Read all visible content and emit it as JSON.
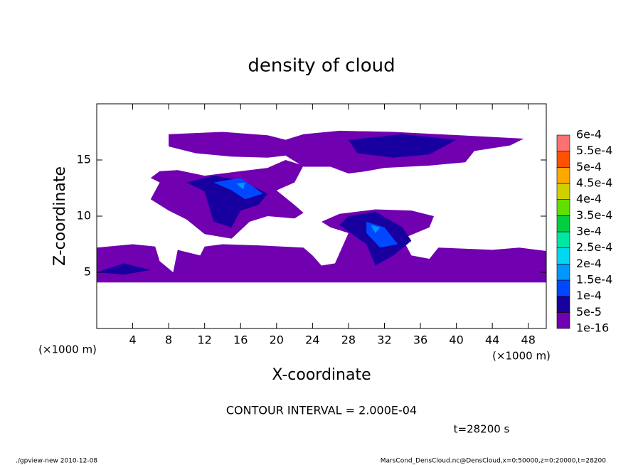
{
  "chart_data": {
    "type": "contour",
    "title": "density of cloud",
    "xlabel": "X-coordinate",
    "ylabel": "Z-coordinate",
    "x_unit": "(×1000 m)",
    "y_unit": "(×1000 m)",
    "note": "CONTOUR INTERVAL = 2.000E-04",
    "time": "t=28200 s",
    "footer_left": "./gpview-new  2010-12-08",
    "footer_right": "MarsCond_DensCloud.nc@DensCloud,x=0:50000,z=0:20000,t=28200",
    "xlim": [
      0,
      50
    ],
    "ylim": [
      0,
      20
    ],
    "xticks": [
      4,
      8,
      12,
      16,
      20,
      24,
      28,
      32,
      36,
      40,
      44,
      48
    ],
    "yticks": [
      5,
      10,
      15
    ],
    "levels": [
      {
        "value": 1e-16,
        "label": "1e-16"
      },
      {
        "value": 5e-05,
        "label": "5e-5"
      },
      {
        "value": 0.0001,
        "label": "1e-4"
      },
      {
        "value": 0.00015,
        "label": "1.5e-4"
      },
      {
        "value": 0.0002,
        "label": "2e-4"
      },
      {
        "value": 0.00025,
        "label": "2.5e-4"
      },
      {
        "value": 0.0003,
        "label": "3e-4"
      },
      {
        "value": 0.00035,
        "label": "3.5e-4"
      },
      {
        "value": 0.0004,
        "label": "4e-4"
      },
      {
        "value": 0.00045,
        "label": "4.5e-4"
      },
      {
        "value": 0.0005,
        "label": "5e-4"
      },
      {
        "value": 0.00055,
        "label": "5.5e-4"
      },
      {
        "value": 0.0006,
        "label": "6e-4"
      }
    ],
    "level_colors": [
      "#7000b0",
      "#1800a0",
      "#0048ff",
      "#0098ff",
      "#00d8f0",
      "#00e8a0",
      "#00d040",
      "#60e000",
      "#d0d000",
      "#ffa800",
      "#ff5000",
      "#ff7070"
    ],
    "regions": [
      {
        "value": 3e-05,
        "x": [
          0,
          50,
          50,
          47,
          44,
          38,
          37,
          35,
          34,
          37,
          37.5,
          35,
          31,
          27,
          25,
          26,
          28,
          26.5,
          25,
          24,
          23,
          18,
          14,
          12,
          11.5,
          9,
          8.5,
          7,
          6.5,
          4,
          0
        ],
        "z": [
          4.1,
          4.1,
          6.9,
          7.2,
          7,
          7.2,
          6.2,
          6.5,
          8,
          9,
          10,
          10.5,
          10.6,
          10.2,
          9.5,
          9,
          8.5,
          5.8,
          5.6,
          6.5,
          7.2,
          7.4,
          7.5,
          7.3,
          6.5,
          7,
          5,
          6,
          7.3,
          7.5,
          7.2
        ]
      },
      {
        "value": 3e-05,
        "x": [
          6,
          7,
          6,
          7,
          9,
          12,
          16,
          19,
          21,
          23,
          22,
          20,
          22,
          23,
          22,
          19,
          17,
          15,
          12,
          10,
          8
        ],
        "z": [
          11.5,
          13,
          13.4,
          14,
          14.1,
          13.6,
          14,
          14.3,
          15,
          14.5,
          13,
          12.3,
          11,
          10.3,
          9.8,
          10,
          9.5,
          8,
          8.4,
          9.7,
          10.5
        ]
      },
      {
        "value": 3e-05,
        "x": [
          8,
          14,
          19,
          21,
          23,
          27,
          33,
          38,
          47.5,
          46,
          42,
          41,
          37,
          32,
          30,
          28,
          26,
          23,
          21,
          19,
          15,
          11,
          8
        ],
        "z": [
          17.3,
          17.5,
          17.2,
          16.8,
          17.3,
          17.6,
          17.5,
          17.3,
          16.9,
          16.3,
          15.8,
          14.8,
          14.5,
          14.3,
          14,
          13.8,
          14.4,
          14.4,
          15.4,
          15.2,
          15.3,
          15.6,
          16.2
        ]
      },
      {
        "value": 7e-05,
        "x": [
          10,
          13,
          16,
          19,
          18,
          16,
          15,
          13,
          12
        ],
        "z": [
          13,
          13.6,
          13.2,
          12,
          11,
          10.5,
          9,
          9.5,
          12.2
        ]
      },
      {
        "value": 7e-05,
        "x": [
          28,
          34,
          40,
          37,
          33,
          29
        ],
        "z": [
          16.8,
          17.3,
          16.8,
          15.5,
          15.2,
          15.6
        ]
      },
      {
        "value": 7e-05,
        "x": [
          28,
          31,
          34,
          35,
          33,
          31,
          30,
          27
        ],
        "z": [
          10,
          10.4,
          9,
          7.8,
          6.5,
          5.6,
          7.5,
          9.2
        ]
      },
      {
        "value": 7e-05,
        "x": [
          0,
          3,
          6,
          3
        ],
        "z": [
          5,
          5.8,
          5.2,
          4.8
        ]
      },
      {
        "value": 0.00012,
        "x": [
          13,
          16,
          18.5,
          16.5,
          15
        ],
        "z": [
          13,
          13.4,
          12,
          11.5,
          12.3
        ]
      },
      {
        "value": 0.00012,
        "x": [
          30,
          32,
          33.5,
          31.5,
          30
        ],
        "z": [
          9.5,
          9,
          7.5,
          7.2,
          8.5
        ]
      },
      {
        "value": 0.00016,
        "x": [
          30.5,
          31.5,
          31
        ],
        "z": [
          9.2,
          9,
          8.5
        ]
      },
      {
        "value": 0.00016,
        "x": [
          15.5,
          16.5,
          16.3
        ],
        "z": [
          12.9,
          13,
          12.4
        ]
      }
    ]
  }
}
